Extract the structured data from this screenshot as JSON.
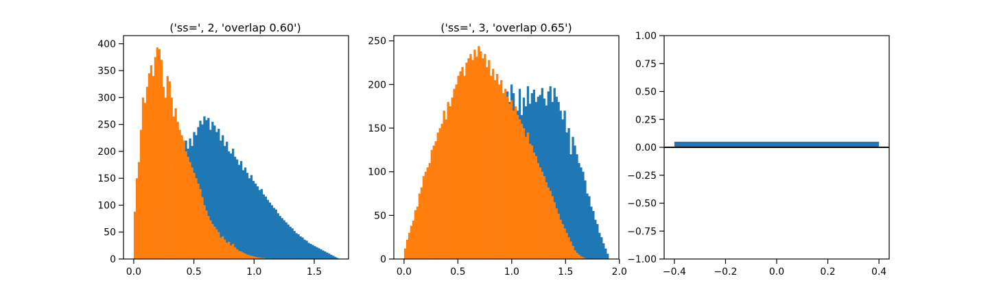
{
  "colors": {
    "blue": "#1f77b4",
    "orange": "#ff7f0e",
    "axis": "#000000"
  },
  "chart_data": [
    {
      "type": "histogram",
      "title": "('ss=', 2, 'overlap 0.60')",
      "xlabel": "",
      "ylabel": "",
      "xlim": [
        -0.085,
        1.785
      ],
      "ylim": [
        0,
        415
      ],
      "xticks": [
        0.0,
        0.5,
        1.0,
        1.5
      ],
      "xtick_labels": [
        "0.0",
        "0.5",
        "1.0",
        "1.5"
      ],
      "yticks": [
        0,
        50,
        100,
        150,
        200,
        250,
        300,
        350,
        400
      ],
      "ytick_labels": [
        "0",
        "50",
        "100",
        "150",
        "200",
        "250",
        "300",
        "350",
        "400"
      ],
      "series": [
        {
          "color": "#1f77b4",
          "bin_start": 0.0,
          "bin_width": 0.017,
          "values": [
            0,
            2,
            4,
            8,
            12,
            18,
            24,
            32,
            42,
            52,
            62,
            74,
            86,
            100,
            110,
            125,
            140,
            152,
            160,
            172,
            180,
            190,
            200,
            206,
            212,
            220,
            205,
            224,
            210,
            236,
            230,
            245,
            257,
            250,
            265,
            258,
            262,
            240,
            255,
            248,
            236,
            242,
            220,
            230,
            210,
            218,
            200,
            196,
            205,
            190,
            185,
            175,
            182,
            165,
            170,
            160,
            150,
            156,
            145,
            140,
            135,
            128,
            130,
            120,
            116,
            110,
            105,
            100,
            95,
            92,
            85,
            80,
            76,
            72,
            68,
            64,
            60,
            57,
            52,
            48,
            46,
            42,
            40,
            36,
            34,
            30,
            28,
            26,
            24,
            22,
            20,
            18,
            16,
            14,
            12,
            10,
            8,
            6,
            4,
            2
          ]
        },
        {
          "color": "#ff7f0e",
          "bin_start": 0.0,
          "bin_width": 0.017,
          "values": [
            88,
            150,
            180,
            240,
            300,
            290,
            320,
            345,
            360,
            340,
            375,
            393,
            390,
            370,
            320,
            300,
            340,
            330,
            300,
            265,
            280,
            255,
            240,
            230,
            220,
            200,
            190,
            180,
            170,
            160,
            150,
            140,
            130,
            115,
            100,
            90,
            80,
            72,
            65,
            60,
            55,
            50,
            40,
            42,
            36,
            30,
            32,
            25,
            28,
            22,
            18,
            15,
            14,
            12,
            10,
            8,
            7,
            6,
            5,
            4,
            3,
            3,
            2,
            2,
            1,
            1,
            1,
            0,
            0,
            0
          ]
        }
      ]
    },
    {
      "type": "histogram",
      "title": "('ss=', 3, 'overlap 0.65')",
      "xlabel": "",
      "ylabel": "",
      "xlim": [
        -0.095,
        1.995
      ],
      "ylim": [
        0,
        256
      ],
      "xticks": [
        0.0,
        0.5,
        1.0,
        1.5,
        2.0
      ],
      "xtick_labels": [
        "0.0",
        "0.5",
        "1.0",
        "1.5",
        "2.0"
      ],
      "yticks": [
        0,
        50,
        100,
        150,
        200,
        250
      ],
      "ytick_labels": [
        "0",
        "50",
        "100",
        "150",
        "200",
        "250"
      ],
      "series": [
        {
          "color": "#1f77b4",
          "bin_start": 0.0,
          "bin_width": 0.019,
          "values": [
            0,
            1,
            1,
            2,
            3,
            4,
            5,
            6,
            7,
            8,
            10,
            12,
            14,
            16,
            18,
            20,
            23,
            26,
            29,
            32,
            36,
            40,
            44,
            48,
            52,
            56,
            60,
            65,
            70,
            75,
            80,
            86,
            92,
            98,
            104,
            110,
            116,
            122,
            128,
            134,
            140,
            146,
            152,
            158,
            164,
            170,
            175,
            180,
            184,
            188,
            192,
            180,
            200,
            190,
            160,
            170,
            195,
            165,
            185,
            175,
            198,
            178,
            190,
            194,
            180,
            186,
            188,
            196,
            184,
            176,
            192,
            198,
            180,
            196,
            186,
            180,
            170,
            160,
            170,
            145,
            150,
            120,
            140,
            130,
            120,
            110,
            105,
            100,
            90,
            75,
            72,
            60,
            55,
            45,
            40,
            30,
            25,
            18,
            12,
            6
          ]
        },
        {
          "color": "#ff7f0e",
          "bin_start": 0.0,
          "bin_width": 0.019,
          "values": [
            12,
            22,
            30,
            38,
            44,
            56,
            60,
            75,
            82,
            95,
            100,
            105,
            110,
            125,
            130,
            135,
            145,
            150,
            155,
            170,
            160,
            180,
            175,
            185,
            195,
            200,
            210,
            215,
            220,
            210,
            225,
            230,
            235,
            228,
            240,
            232,
            244,
            238,
            230,
            235,
            220,
            228,
            210,
            218,
            205,
            212,
            200,
            205,
            190,
            195,
            186,
            178,
            182,
            170,
            175,
            165,
            160,
            155,
            150,
            140,
            145,
            132,
            130,
            122,
            118,
            110,
            105,
            100,
            95,
            88,
            82,
            78,
            72,
            65,
            58,
            52,
            45,
            40,
            35,
            30,
            25,
            20,
            15,
            10,
            7,
            5,
            3,
            2,
            1
          ]
        }
      ]
    },
    {
      "type": "bar",
      "title": "",
      "xlabel": "",
      "ylabel": "",
      "xlim": [
        -0.44,
        0.44
      ],
      "ylim": [
        -1.0,
        1.0
      ],
      "xticks": [
        -0.4,
        -0.2,
        0.0,
        0.2,
        0.4
      ],
      "xtick_labels": [
        "−0.4",
        "−0.2",
        "0.0",
        "0.2",
        "0.4"
      ],
      "yticks": [
        -1.0,
        -0.75,
        -0.5,
        -0.25,
        0.0,
        0.25,
        0.5,
        0.75,
        1.0
      ],
      "ytick_labels": [
        "−1.00",
        "−0.75",
        "−0.50",
        "−0.25",
        "0.00",
        "0.25",
        "0.50",
        "0.75",
        "1.00"
      ],
      "bars": [
        {
          "x": 0.0,
          "width": 0.8,
          "value": 0.05,
          "color": "#1f77b4"
        }
      ],
      "hline": 0.0
    }
  ]
}
